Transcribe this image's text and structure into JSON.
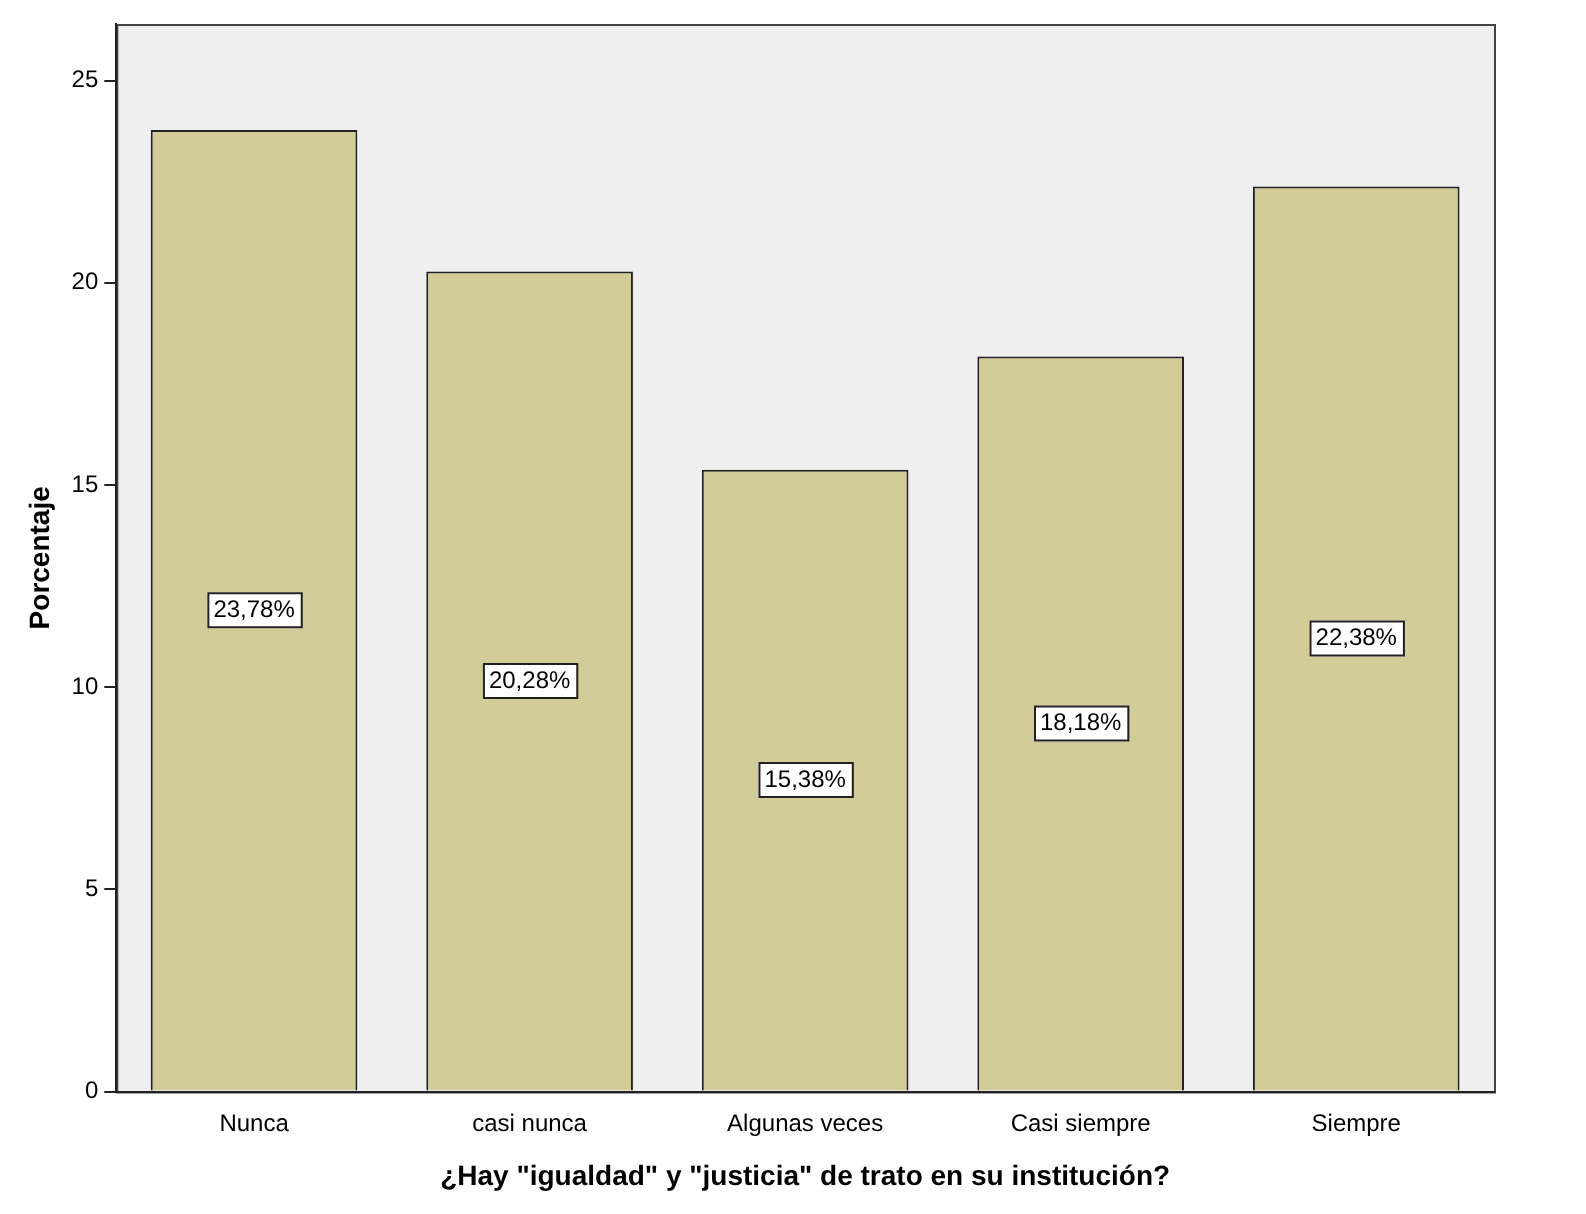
{
  "chart_data": {
    "type": "bar",
    "xlabel": "¿Hay \"igualdad\" y \"justicia\" de trato en su institución?",
    "ylabel": "Porcentaje",
    "categories": [
      "Nunca",
      "casi nunca",
      "Algunas veces",
      "Casi siempre",
      "Siempre"
    ],
    "values": [
      23.78,
      20.28,
      15.38,
      18.18,
      22.38
    ],
    "value_labels": [
      "23,78%",
      "20,28%",
      "15,38%",
      "18,18%",
      "22,38%"
    ],
    "color": "#d2cd98",
    "ylim": [
      0,
      26.4
    ],
    "yticks": [
      0,
      5,
      10,
      15,
      20,
      25
    ],
    "grid": false,
    "legend": false
  }
}
